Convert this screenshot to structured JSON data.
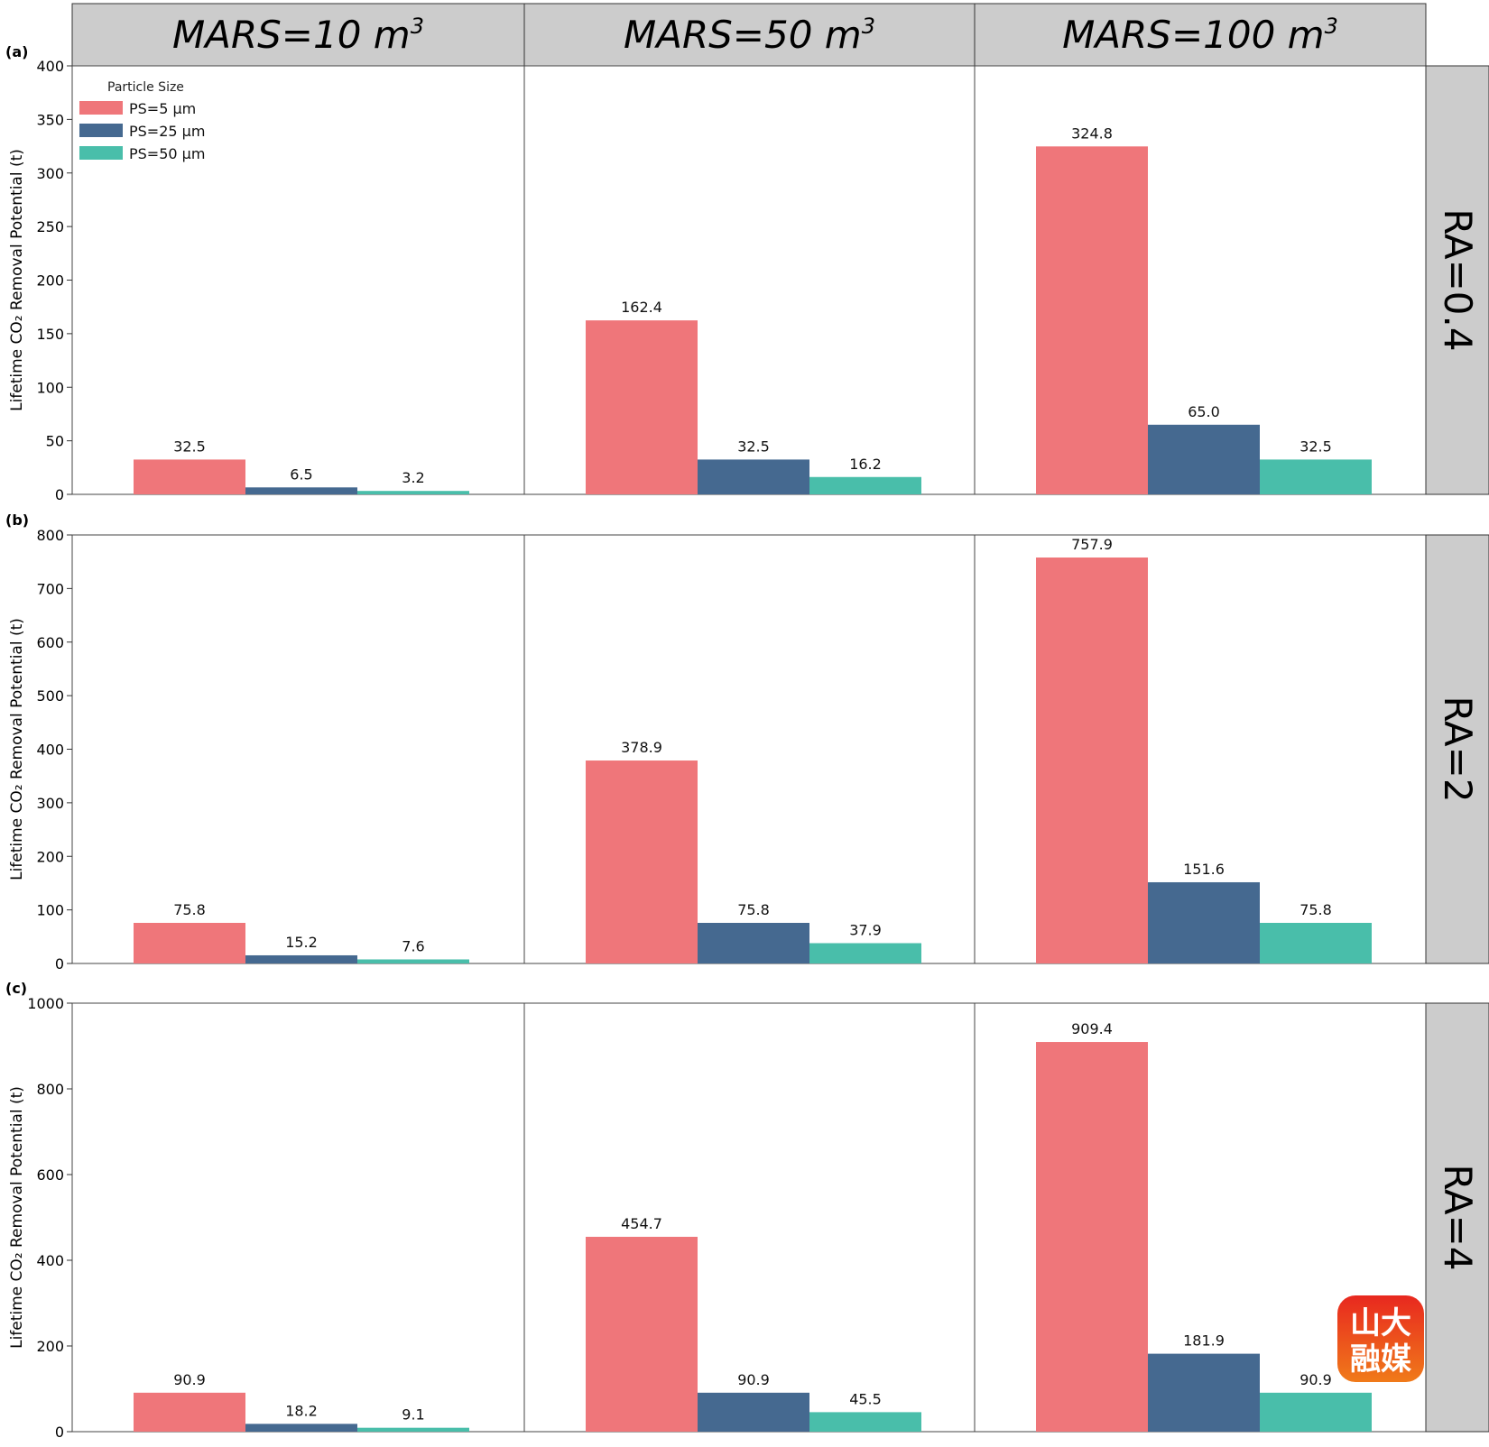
{
  "chart_data": {
    "type": "bar",
    "legend": {
      "title": "Particle Size",
      "placement": "top-left",
      "entries": [
        "PS=5 µm",
        "PS=25 µm",
        "PS=50 µm"
      ]
    },
    "colors": [
      "#ef767a",
      "#456990",
      "#49beaa"
    ],
    "columns": [
      {
        "label": "MARS=10 m",
        "exponent": "3"
      },
      {
        "label": "MARS=50 m",
        "exponent": "3"
      },
      {
        "label": "MARS=100 m",
        "exponent": "3"
      }
    ],
    "rows": [
      {
        "tag": "(a)",
        "strip": "RA=0.4",
        "ylabel": "Lifetime CO₂ Removal Potential (t)",
        "ylim": [
          0,
          400
        ],
        "yticks": [
          "0",
          "50",
          "100",
          "150",
          "200",
          "250",
          "300",
          "350",
          "400"
        ],
        "panels": [
          {
            "values": [
              32.5,
              6.5,
              3.2
            ],
            "labels": [
              "32.5",
              "6.5",
              "3.2"
            ]
          },
          {
            "values": [
              162.4,
              32.5,
              16.2
            ],
            "labels": [
              "162.4",
              "32.5",
              "16.2"
            ]
          },
          {
            "values": [
              324.8,
              65.0,
              32.5
            ],
            "labels": [
              "324.8",
              "65.0",
              "32.5"
            ]
          }
        ]
      },
      {
        "tag": "(b)",
        "strip": "RA=2",
        "ylabel": "Lifetime CO₂ Removal Potential (t)",
        "ylim": [
          0,
          800
        ],
        "yticks": [
          "0",
          "100",
          "200",
          "300",
          "400",
          "500",
          "600",
          "700",
          "800"
        ],
        "panels": [
          {
            "values": [
              75.8,
              15.2,
              7.6
            ],
            "labels": [
              "75.8",
              "15.2",
              "7.6"
            ]
          },
          {
            "values": [
              378.9,
              75.8,
              37.9
            ],
            "labels": [
              "378.9",
              "75.8",
              "37.9"
            ]
          },
          {
            "values": [
              757.9,
              151.6,
              75.8
            ],
            "labels": [
              "757.9",
              "151.6",
              "75.8"
            ]
          }
        ]
      },
      {
        "tag": "(c)",
        "strip": "RA=4",
        "ylabel": "Lifetime CO₂ Removal Potential (t)",
        "ylim": [
          0,
          1000
        ],
        "yticks": [
          "0",
          "200",
          "400",
          "600",
          "800",
          "1000"
        ],
        "panels": [
          {
            "values": [
              90.9,
              18.2,
              9.1
            ],
            "labels": [
              "90.9",
              "18.2",
              "9.1"
            ]
          },
          {
            "values": [
              454.7,
              90.9,
              45.5
            ],
            "labels": [
              "454.7",
              "90.9",
              "45.5"
            ]
          },
          {
            "values": [
              909.4,
              181.9,
              90.9
            ],
            "labels": [
              "909.4",
              "181.9",
              "90.9"
            ]
          }
        ]
      }
    ]
  },
  "watermark": {
    "line1": "山大",
    "line2": "融媒",
    "color_top": "#e8281f",
    "color_bottom": "#f07a1a"
  }
}
